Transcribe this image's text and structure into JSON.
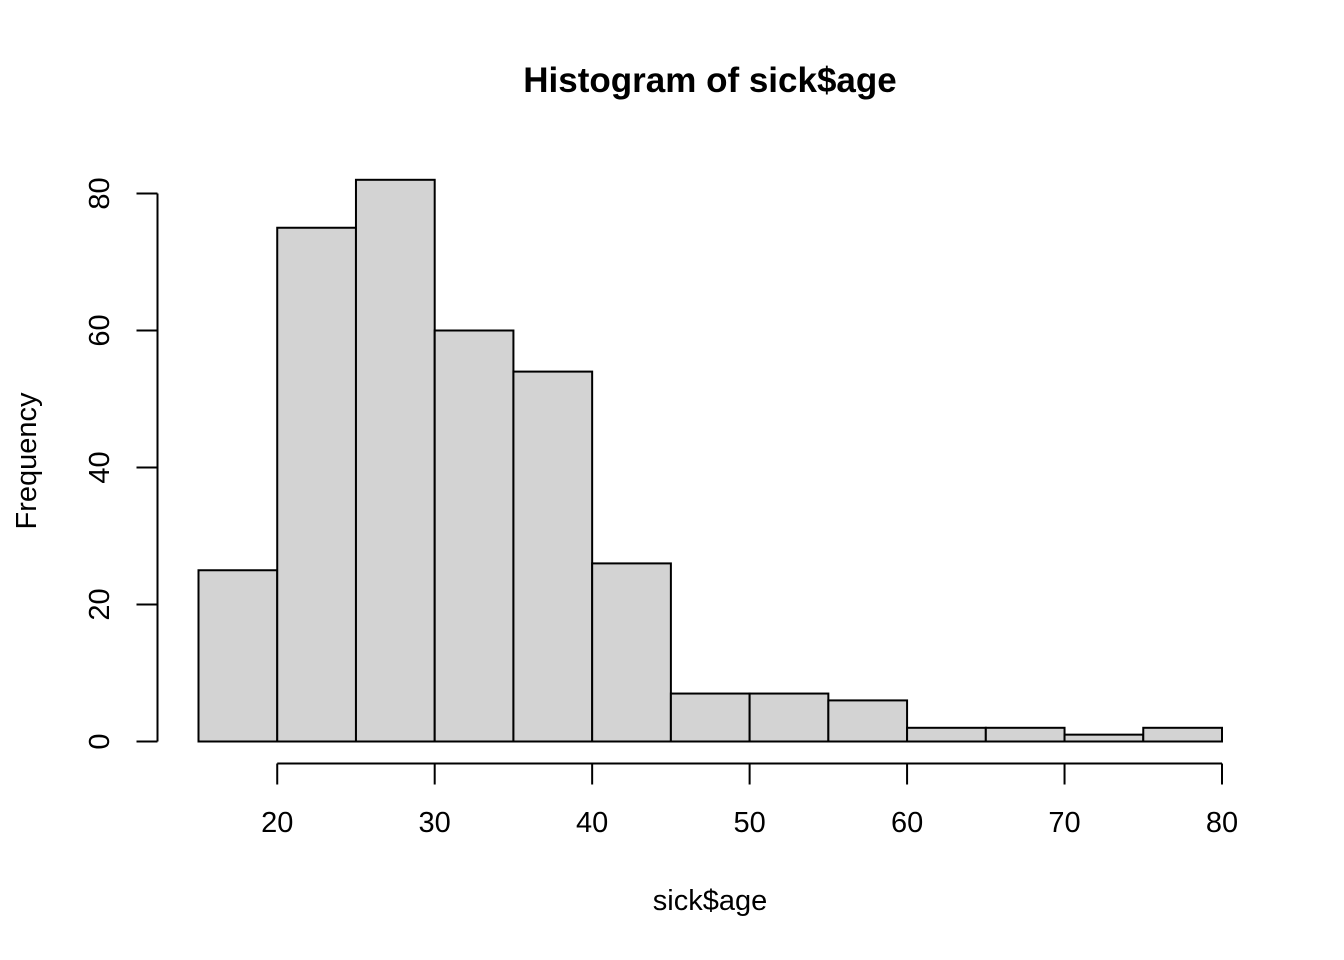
{
  "chart_data": {
    "type": "bar",
    "title": "Histogram of sick$age",
    "xlabel": "sick$age",
    "ylabel": "Frequency",
    "bins": [
      {
        "from": 15,
        "to": 20,
        "count": 25
      },
      {
        "from": 20,
        "to": 25,
        "count": 75
      },
      {
        "from": 25,
        "to": 30,
        "count": 82
      },
      {
        "from": 30,
        "to": 35,
        "count": 60
      },
      {
        "from": 35,
        "to": 40,
        "count": 54
      },
      {
        "from": 40,
        "to": 45,
        "count": 26
      },
      {
        "from": 45,
        "to": 50,
        "count": 7
      },
      {
        "from": 50,
        "to": 55,
        "count": 7
      },
      {
        "from": 55,
        "to": 60,
        "count": 6
      },
      {
        "from": 60,
        "to": 65,
        "count": 2
      },
      {
        "from": 65,
        "to": 70,
        "count": 2
      },
      {
        "from": 70,
        "to": 75,
        "count": 1
      },
      {
        "from": 75,
        "to": 80,
        "count": 2
      }
    ],
    "xticks": [
      "20",
      "30",
      "40",
      "50",
      "60",
      "70",
      "80"
    ],
    "yticks": [
      "0",
      "20",
      "40",
      "60",
      "80"
    ],
    "xlim": [
      15,
      80
    ],
    "ylim": [
      0,
      82
    ],
    "grid": false,
    "legend": "none",
    "colors": {
      "bar_fill": "#d3d3d3",
      "bar_stroke": "#000000"
    }
  }
}
